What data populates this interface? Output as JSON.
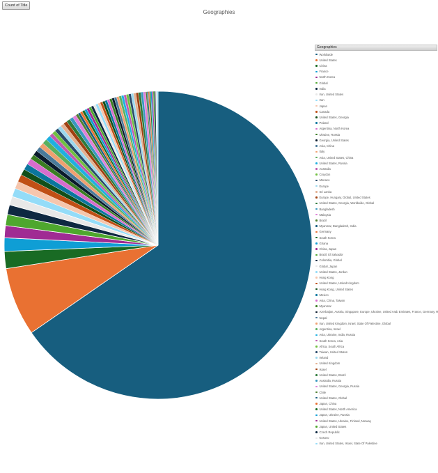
{
  "field_button": {
    "label": "Count of Title"
  },
  "chart_data": {
    "type": "pie",
    "title": "Geographies",
    "legend_title": "Geographies",
    "legend_position": "right",
    "categories": [
      "Worldwide",
      "United States",
      "China",
      "France",
      "North Korea",
      "Global",
      "India",
      "Iran, United States",
      "Iran",
      "Japan",
      "Canada",
      "United States, Georgia",
      "Poland",
      "Argentina, North Korea",
      "Ukraine, Russia",
      "Georgia, United States",
      "Asia, China",
      "Italy",
      "Asia, United States, China",
      "United States, Russia",
      "Australia",
      "Croydon",
      "Monaco",
      "Europe",
      "Sri Lanka",
      "Europe, Hungary, Global, United States",
      "United States, Georgia, Worldwide, Global",
      "Bangladesh",
      "Malaysia",
      "Brazil",
      "Myanmar, Bangladesh, India",
      "Germany",
      "South Korea",
      "Ghana",
      "China, Japan",
      "Brazil, El Salvador",
      "Colombia, Global",
      "Global, Japan",
      "United States, Jordan",
      "Hong Kong",
      "United States, United Kingdom",
      "Hong Kong, United States",
      "Mexico",
      "Asia, China, Taiwan",
      "Myanmar",
      "Azerbaijan, Austria, Singapore, Europe, Ukraine, United Arab Emirates, France, Germany, Russia",
      "Nepal",
      "Iran, United Kingdom, Israel, State Of Palestine, Global",
      "Argentina, Israel",
      "Asia, Ukraine, India, Russia",
      "South Korea, Asia",
      "Africa, South Africa",
      "Taiwan, United States",
      "Ireland",
      "United Kingdom",
      "Israel",
      "United States, Brazil",
      "Australia, Russia",
      "United States, Georgia, Russia",
      "Chile",
      "United States, Global",
      "Japan, China",
      "United States, North America",
      "Japan, Ukraine, Russia",
      "United States, Ukraine, Finland, Norway",
      "Japan, United States",
      "Czech Republic",
      "Kosovo",
      "Iran, United States, Israel, State Of Palestine"
    ],
    "values": [
      510,
      56,
      14,
      11,
      10,
      9,
      8,
      7,
      7,
      6,
      6,
      5,
      5,
      5,
      4,
      4,
      4,
      4,
      4,
      4,
      3,
      3,
      3,
      3,
      3,
      3,
      3,
      3,
      3,
      2,
      2,
      2,
      2,
      2,
      2,
      2,
      2,
      2,
      2,
      2,
      2,
      2,
      2,
      2,
      2,
      2,
      2,
      2,
      2,
      2,
      2,
      2,
      2,
      2,
      2,
      2,
      2,
      2,
      2,
      1,
      1,
      1,
      1,
      1,
      1,
      1,
      1,
      1,
      1
    ],
    "colors": [
      "#175e7f",
      "#e97132",
      "#196b24",
      "#0f9ed5",
      "#a02b93",
      "#4ea72e",
      "#0e2841",
      "#e8e8e8",
      "#94dcf8",
      "#f6c6ad",
      "#c04f15",
      "#124f1a",
      "#0b769f",
      "#d86dcd",
      "#3b7d23",
      "#0a1a2b",
      "#4a7a9a",
      "#f0a070",
      "#5ab060",
      "#1fb0e0",
      "#c05ab0",
      "#70c040",
      "#2a4a6a",
      "#9ad8ee",
      "#e3b090",
      "#a04010",
      "#2d7a3a",
      "#3a98c0",
      "#e080d8",
      "#508030"
    ]
  }
}
